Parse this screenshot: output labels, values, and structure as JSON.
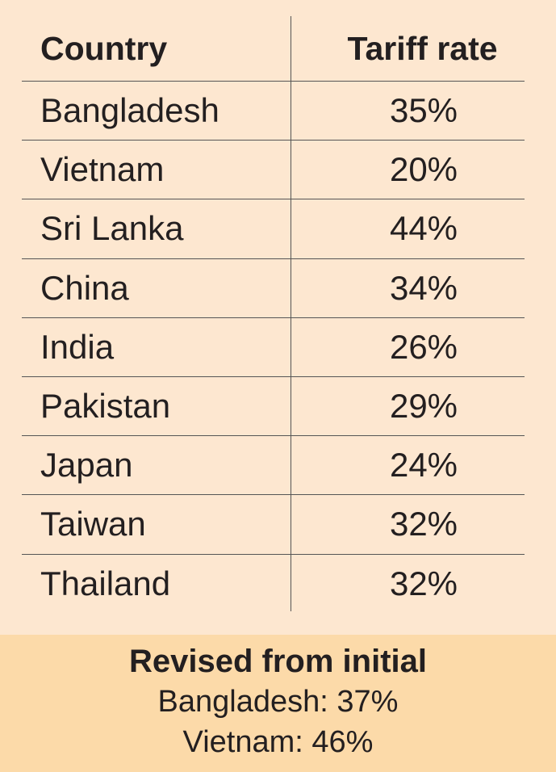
{
  "table": {
    "columns": [
      "Country",
      "Tariff rate"
    ],
    "rows": [
      [
        "Bangladesh",
        "35%"
      ],
      [
        "Vietnam",
        "20%"
      ],
      [
        "Sri Lanka",
        "44%"
      ],
      [
        "China",
        "34%"
      ],
      [
        "India",
        "26%"
      ],
      [
        "Pakistan",
        "29%"
      ],
      [
        "Japan",
        "24%"
      ],
      [
        "Taiwan",
        "32%"
      ],
      [
        "Thailand",
        "32%"
      ]
    ]
  },
  "footer": {
    "title": "Revised from initial",
    "lines": [
      "Bangladesh: 37%",
      "Vietnam: 46%"
    ]
  }
}
